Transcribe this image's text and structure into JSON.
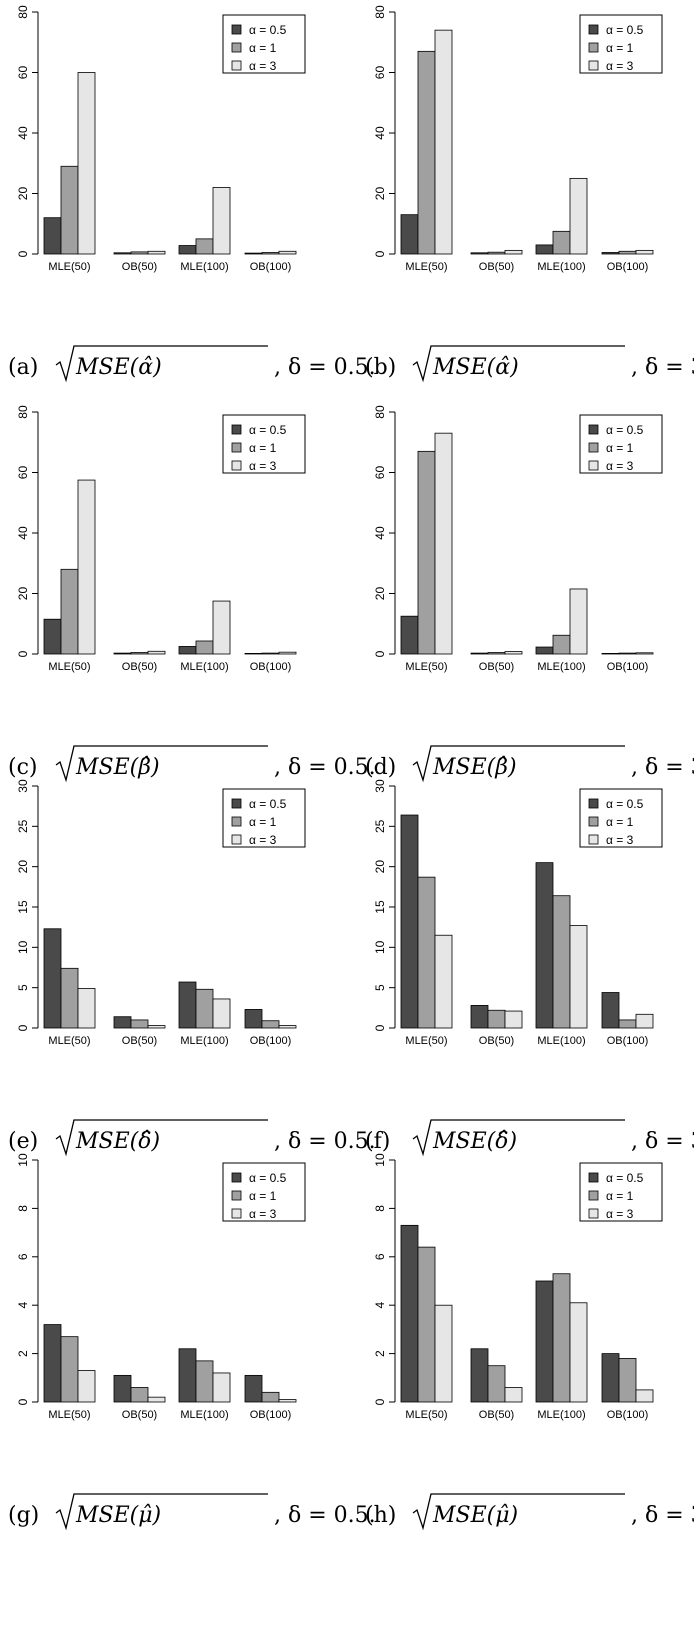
{
  "figure": {
    "panels": [
      {
        "label": "(a)",
        "quantity": "MSE(α̂)",
        "delta": "δ = 0.5."
      },
      {
        "label": "(b)",
        "quantity": "MSE(α̂)",
        "delta": "δ = 3."
      },
      {
        "label": "(c)",
        "quantity": "MSE(β̂)",
        "delta": "δ = 0.5."
      },
      {
        "label": "(d)",
        "quantity": "MSE(β̂)",
        "delta": "δ = 3."
      },
      {
        "label": "(e)",
        "quantity": "MSE(δ̂)",
        "delta": "δ = 0.5."
      },
      {
        "label": "(f)",
        "quantity": "MSE(δ̂)",
        "delta": "δ = 3."
      },
      {
        "label": "(g)",
        "quantity": "MSE(μ̂)",
        "delta": "δ = 0.5."
      },
      {
        "label": "(h)",
        "quantity": "MSE(μ̂)",
        "delta": "δ = 3."
      }
    ]
  },
  "legend": {
    "labels": [
      "α = 0.5",
      "α = 1",
      "α = 3"
    ],
    "position": "top-right"
  },
  "colors": {
    "series": [
      "#4a4a4a",
      "#a0a0a0",
      "#e6e6e6"
    ],
    "bar_stroke": "#000000",
    "axis": "#000000",
    "background": "#ffffff"
  },
  "chart_data": [
    {
      "type": "bar",
      "categories": [
        "MLE(50)",
        "OB(50)",
        "MLE(100)",
        "OB(100)"
      ],
      "ylim": [
        0,
        80
      ],
      "yticks": [
        0,
        20,
        40,
        60,
        80
      ],
      "series": [
        {
          "name": "α = 0.5",
          "values": [
            12,
            0.4,
            2.8,
            0.3
          ]
        },
        {
          "name": "α = 1",
          "values": [
            29,
            0.7,
            5,
            0.5
          ]
        },
        {
          "name": "α = 3",
          "values": [
            60,
            0.9,
            22,
            0.9
          ]
        }
      ],
      "legend": "top-right",
      "grid": false
    },
    {
      "type": "bar",
      "categories": [
        "MLE(50)",
        "OB(50)",
        "MLE(100)",
        "OB(100)"
      ],
      "ylim": [
        0,
        80
      ],
      "yticks": [
        0,
        20,
        40,
        60,
        80
      ],
      "series": [
        {
          "name": "α = 0.5",
          "values": [
            13,
            0.4,
            3,
            0.5
          ]
        },
        {
          "name": "α = 1",
          "values": [
            67,
            0.6,
            7.5,
            0.9
          ]
        },
        {
          "name": "α = 3",
          "values": [
            74,
            1.2,
            25,
            1.2
          ]
        }
      ],
      "legend": "top-right",
      "grid": false
    },
    {
      "type": "bar",
      "categories": [
        "MLE(50)",
        "OB(50)",
        "MLE(100)",
        "OB(100)"
      ],
      "ylim": [
        0,
        80
      ],
      "yticks": [
        0,
        20,
        40,
        60,
        80
      ],
      "series": [
        {
          "name": "α = 0.5",
          "values": [
            11.5,
            0.3,
            2.5,
            0.2
          ]
        },
        {
          "name": "α = 1",
          "values": [
            28,
            0.5,
            4.3,
            0.3
          ]
        },
        {
          "name": "α = 3",
          "values": [
            57.5,
            0.9,
            17.5,
            0.6
          ]
        }
      ],
      "legend": "top-right",
      "grid": false
    },
    {
      "type": "bar",
      "categories": [
        "MLE(50)",
        "OB(50)",
        "MLE(100)",
        "OB(100)"
      ],
      "ylim": [
        0,
        80
      ],
      "yticks": [
        0,
        20,
        40,
        60,
        80
      ],
      "series": [
        {
          "name": "α = 0.5",
          "values": [
            12.5,
            0.3,
            2.3,
            0.2
          ]
        },
        {
          "name": "α = 1",
          "values": [
            67,
            0.5,
            6.2,
            0.3
          ]
        },
        {
          "name": "α = 3",
          "values": [
            73,
            0.8,
            21.5,
            0.4
          ]
        }
      ],
      "legend": "top-right",
      "grid": false
    },
    {
      "type": "bar",
      "categories": [
        "MLE(50)",
        "OB(50)",
        "MLE(100)",
        "OB(100)"
      ],
      "ylim": [
        0,
        30
      ],
      "yticks": [
        0,
        5,
        10,
        15,
        20,
        25,
        30
      ],
      "series": [
        {
          "name": "α = 0.5",
          "values": [
            12.3,
            1.4,
            5.7,
            2.3
          ]
        },
        {
          "name": "α = 1",
          "values": [
            7.4,
            1.0,
            4.8,
            0.9
          ]
        },
        {
          "name": "α = 3",
          "values": [
            4.9,
            0.3,
            3.6,
            0.3
          ]
        }
      ],
      "legend": "top-right",
      "grid": false
    },
    {
      "type": "bar",
      "categories": [
        "MLE(50)",
        "OB(50)",
        "MLE(100)",
        "OB(100)"
      ],
      "ylim": [
        0,
        30
      ],
      "yticks": [
        0,
        5,
        10,
        15,
        20,
        25,
        30
      ],
      "series": [
        {
          "name": "α = 0.5",
          "values": [
            26.4,
            2.8,
            20.5,
            4.4
          ]
        },
        {
          "name": "α = 1",
          "values": [
            18.7,
            2.2,
            16.4,
            1.0
          ]
        },
        {
          "name": "α = 3",
          "values": [
            11.5,
            2.1,
            12.7,
            1.7
          ]
        }
      ],
      "legend": "top-right",
      "grid": false
    },
    {
      "type": "bar",
      "categories": [
        "MLE(50)",
        "OB(50)",
        "MLE(100)",
        "OB(100)"
      ],
      "ylim": [
        0,
        10
      ],
      "yticks": [
        0,
        2,
        4,
        6,
        8,
        10
      ],
      "series": [
        {
          "name": "α = 0.5",
          "values": [
            3.2,
            1.1,
            2.2,
            1.1
          ]
        },
        {
          "name": "α = 1",
          "values": [
            2.7,
            0.6,
            1.7,
            0.4
          ]
        },
        {
          "name": "α = 3",
          "values": [
            1.3,
            0.2,
            1.2,
            0.1
          ]
        }
      ],
      "legend": "top-right",
      "grid": false
    },
    {
      "type": "bar",
      "categories": [
        "MLE(50)",
        "OB(50)",
        "MLE(100)",
        "OB(100)"
      ],
      "ylim": [
        0,
        10
      ],
      "yticks": [
        0,
        2,
        4,
        6,
        8,
        10
      ],
      "series": [
        {
          "name": "α = 0.5",
          "values": [
            7.3,
            2.2,
            5.0,
            2.0
          ]
        },
        {
          "name": "α = 1",
          "values": [
            6.4,
            1.5,
            5.3,
            1.8
          ]
        },
        {
          "name": "α = 3",
          "values": [
            4.0,
            0.6,
            4.1,
            0.5
          ]
        }
      ],
      "legend": "top-right",
      "grid": false
    }
  ]
}
